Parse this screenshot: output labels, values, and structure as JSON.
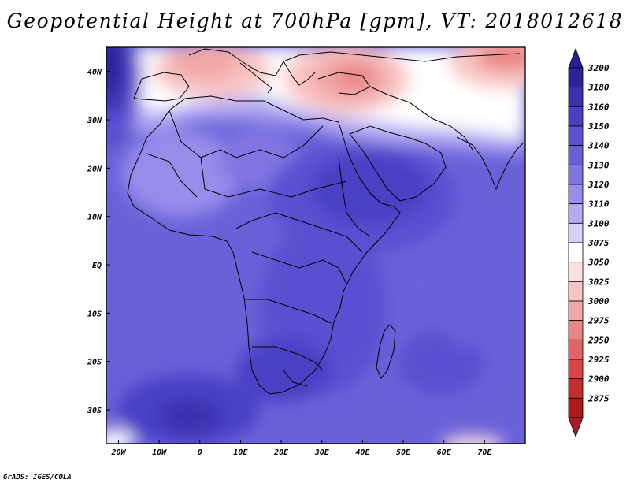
{
  "title": "Geopotential Height at 700hPa [gpm], VT: 2018012618",
  "footer": "GrADS: IGES/COLA",
  "map": {
    "lon_range": [
      -23,
      80
    ],
    "lat_range": [
      -37,
      45
    ],
    "lon_ticks": [
      {
        "value": -20,
        "label": "20W"
      },
      {
        "value": -10,
        "label": "10W"
      },
      {
        "value": 0,
        "label": "0"
      },
      {
        "value": 10,
        "label": "10E"
      },
      {
        "value": 20,
        "label": "20E"
      },
      {
        "value": 30,
        "label": "30E"
      },
      {
        "value": 40,
        "label": "40E"
      },
      {
        "value": 50,
        "label": "50E"
      },
      {
        "value": 60,
        "label": "60E"
      },
      {
        "value": 70,
        "label": "70E"
      }
    ],
    "lat_ticks": [
      {
        "value": 40,
        "label": "40N"
      },
      {
        "value": 30,
        "label": "30N"
      },
      {
        "value": 20,
        "label": "20N"
      },
      {
        "value": 10,
        "label": "10N"
      },
      {
        "value": 0,
        "label": "EQ"
      },
      {
        "value": -10,
        "label": "10S"
      },
      {
        "value": -20,
        "label": "20S"
      },
      {
        "value": -30,
        "label": "30S"
      }
    ]
  },
  "colorbar": {
    "levels": [
      "3200",
      "3180",
      "3160",
      "3150",
      "3140",
      "3130",
      "3120",
      "3110",
      "3100",
      "3075",
      "3050",
      "3025",
      "3000",
      "2975",
      "2950",
      "2925",
      "2900",
      "2875"
    ],
    "top_color": "#262096",
    "bottom_color": "#a81e24",
    "colors": [
      "#2a2499",
      "#3a31b0",
      "#4a40c4",
      "#5a50d0",
      "#6a61d9",
      "#8075e2",
      "#978deb",
      "#b4abf3",
      "#d6d1fa",
      "#ffffff",
      "#fde1e1",
      "#f9c4c4",
      "#f2a6a6",
      "#ea8585",
      "#e26464",
      "#d84646",
      "#c52c2c",
      "#b0181c"
    ]
  },
  "features": [
    {
      "name": "high-atlantic-nw",
      "center": [
        -23,
        42
      ],
      "value": 3185
    },
    {
      "name": "low-mediterranean",
      "center": [
        3,
        41
      ],
      "value": 3040
    },
    {
      "name": "low-turkey",
      "center": [
        36,
        38
      ],
      "value": 3030
    },
    {
      "name": "low-central-asia",
      "center": [
        75,
        42
      ],
      "value": 3040
    },
    {
      "name": "high-east-africa",
      "center": [
        38,
        15
      ],
      "value": 3160
    },
    {
      "name": "high-south-atlantic",
      "center": [
        -5,
        -35
      ],
      "value": 3165
    }
  ]
}
